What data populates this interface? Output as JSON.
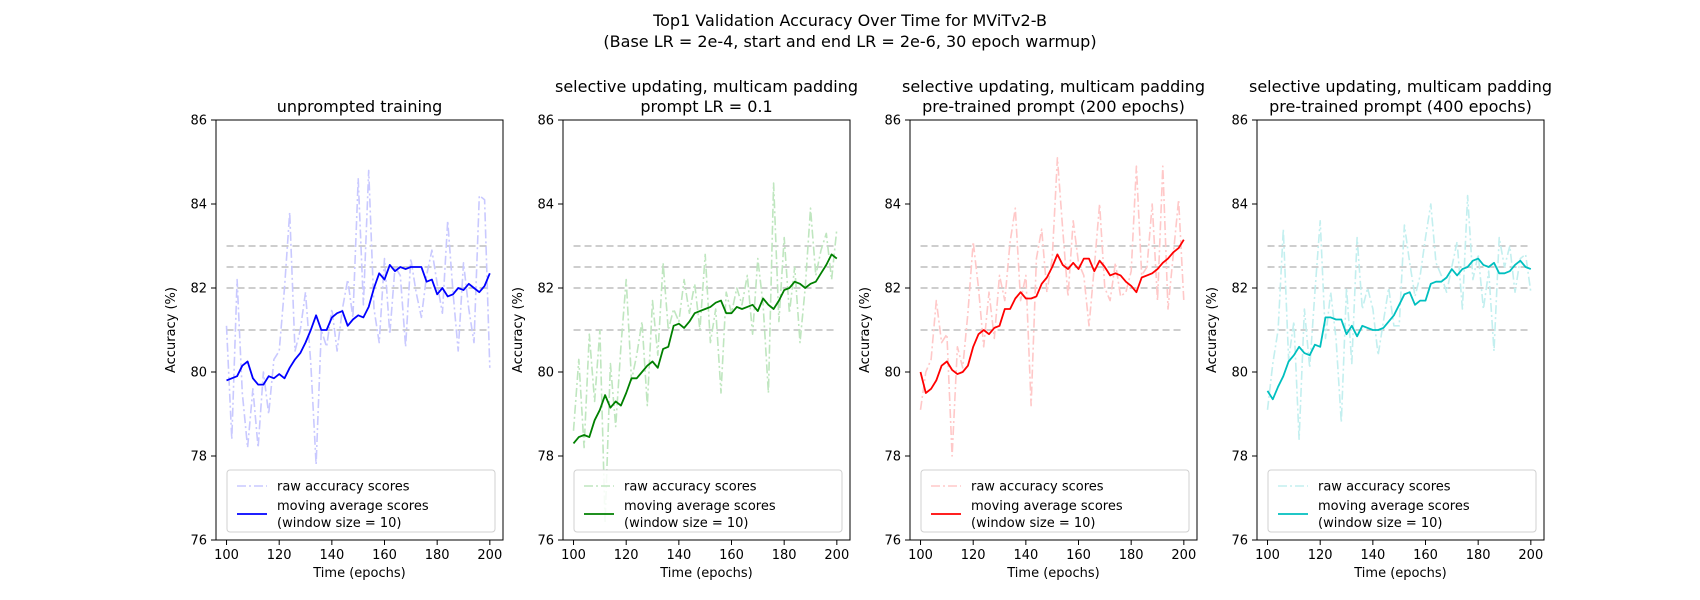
{
  "figure": {
    "suptitle_line1": "Top1 Validation Accuracy Over Time for MViTv2-B",
    "suptitle_line2": "(Base LR = 2e-4, start and end LR = 2e-6, 30 epoch warmup)"
  },
  "chart_data": [
    {
      "type": "line",
      "title": [
        "unprompted training"
      ],
      "xlabel": "Time (epochs)",
      "ylabel": "Accuracy (%)",
      "xlim": [
        96,
        205
      ],
      "ylim": [
        76,
        86
      ],
      "xticks": [
        100,
        120,
        140,
        160,
        180,
        200
      ],
      "yticks": [
        76,
        78,
        80,
        82,
        84,
        86
      ],
      "reference_lines": [
        81.0,
        82.0,
        82.5,
        83.0
      ],
      "colors": {
        "raw": "#c9c9ff",
        "avg": "#0000ff"
      },
      "legend": {
        "position": "lower right",
        "entries": [
          "raw accuracy scores",
          "moving average scores\n(window size = 10)"
        ]
      },
      "series": [
        {
          "name": "raw accuracy scores",
          "style": "dashdot",
          "x": [
            100,
            102,
            104,
            106,
            108,
            110,
            112,
            114,
            116,
            118,
            120,
            122,
            124,
            126,
            128,
            130,
            132,
            134,
            136,
            138,
            140,
            142,
            144,
            146,
            148,
            150,
            152,
            154,
            156,
            158,
            160,
            162,
            164,
            166,
            168,
            170,
            172,
            174,
            176,
            178,
            180,
            182,
            184,
            186,
            188,
            190,
            192,
            194,
            196,
            198,
            200
          ],
          "y": [
            81.1,
            78.4,
            82.2,
            79.5,
            78.2,
            79.6,
            78.2,
            80.0,
            79.0,
            80.3,
            80.5,
            82.0,
            83.8,
            80.5,
            81.0,
            81.9,
            80.2,
            77.8,
            81.0,
            80.6,
            81.5,
            80.5,
            81.5,
            82.2,
            81.3,
            84.6,
            81.6,
            84.8,
            81.5,
            80.7,
            82.7,
            80.9,
            82.5,
            82.3,
            80.6,
            82.7,
            81.9,
            81.3,
            82.3,
            82.9,
            82.1,
            81.4,
            83.6,
            81.9,
            80.5,
            82.6,
            81.5,
            80.7,
            84.2,
            84.1,
            80.1
          ]
        },
        {
          "name": "moving average scores\n(window size = 10)",
          "style": "solid",
          "x": [
            100,
            102,
            104,
            106,
            108,
            110,
            112,
            114,
            116,
            118,
            120,
            122,
            124,
            126,
            128,
            130,
            132,
            134,
            136,
            138,
            140,
            142,
            144,
            146,
            148,
            150,
            152,
            154,
            156,
            158,
            160,
            162,
            164,
            166,
            168,
            170,
            172,
            174,
            176,
            178,
            180,
            182,
            184,
            186,
            188,
            190,
            192,
            194,
            196,
            198,
            200
          ],
          "y": [
            79.8,
            79.85,
            79.9,
            80.15,
            80.25,
            79.85,
            79.7,
            79.7,
            79.9,
            79.85,
            79.95,
            79.85,
            80.1,
            80.3,
            80.45,
            80.7,
            81.0,
            81.35,
            81.0,
            81.0,
            81.3,
            81.4,
            81.45,
            81.1,
            81.25,
            81.35,
            81.3,
            81.55,
            82.0,
            82.35,
            82.2,
            82.55,
            82.4,
            82.5,
            82.45,
            82.5,
            82.5,
            82.5,
            82.15,
            82.2,
            81.85,
            82.0,
            81.8,
            81.85,
            82.0,
            81.95,
            82.1,
            82.0,
            81.9,
            82.05,
            82.35
          ]
        }
      ]
    },
    {
      "type": "line",
      "title": [
        "selective updating, multicam padding",
        "prompt LR = 0.1"
      ],
      "xlabel": "Time (epochs)",
      "ylabel": "Accuracy (%)",
      "xlim": [
        96,
        205
      ],
      "ylim": [
        76,
        86
      ],
      "xticks": [
        100,
        120,
        140,
        160,
        180,
        200
      ],
      "yticks": [
        76,
        78,
        80,
        82,
        84,
        86
      ],
      "reference_lines": [
        81.0,
        82.0,
        82.5,
        83.0
      ],
      "colors": {
        "raw": "#bfe6bf",
        "avg": "#008000"
      },
      "legend": {
        "position": "lower right",
        "entries": [
          "raw accuracy scores",
          "moving average scores\n(window size = 10)"
        ]
      },
      "series": [
        {
          "name": "raw accuracy scores",
          "style": "dashdot",
          "x": [
            100,
            102,
            104,
            106,
            108,
            110,
            112,
            114,
            116,
            118,
            120,
            122,
            124,
            126,
            128,
            130,
            132,
            134,
            136,
            138,
            140,
            142,
            144,
            146,
            148,
            150,
            152,
            154,
            156,
            158,
            160,
            162,
            164,
            166,
            168,
            170,
            172,
            174,
            176,
            178,
            180,
            182,
            184,
            186,
            188,
            190,
            192,
            194,
            196,
            198,
            200
          ],
          "y": [
            78.6,
            80.3,
            78.2,
            80.9,
            79.3,
            81.0,
            76.4,
            80.2,
            78.7,
            80.6,
            82.2,
            79.8,
            80.4,
            81.2,
            79.2,
            81.7,
            80.4,
            82.6,
            81.0,
            81.5,
            81.2,
            82.2,
            81.4,
            82.1,
            81.0,
            82.8,
            80.7,
            81.5,
            79.5,
            81.9,
            81.4,
            82.0,
            81.6,
            82.3,
            80.9,
            82.7,
            81.6,
            79.5,
            84.5,
            81.2,
            83.2,
            81.4,
            82.5,
            80.7,
            82.0,
            83.9,
            82.3,
            82.9,
            83.3,
            82.2,
            83.4
          ]
        },
        {
          "name": "moving average scores\n(window size = 10)",
          "style": "solid",
          "x": [
            100,
            102,
            104,
            106,
            108,
            110,
            112,
            114,
            116,
            118,
            120,
            122,
            124,
            126,
            128,
            130,
            132,
            134,
            136,
            138,
            140,
            142,
            144,
            146,
            148,
            150,
            152,
            154,
            156,
            158,
            160,
            162,
            164,
            166,
            168,
            170,
            172,
            174,
            176,
            178,
            180,
            182,
            184,
            186,
            188,
            190,
            192,
            194,
            196,
            198,
            200
          ],
          "y": [
            78.3,
            78.45,
            78.5,
            78.45,
            78.85,
            79.1,
            79.45,
            79.15,
            79.3,
            79.2,
            79.5,
            79.85,
            79.85,
            80.0,
            80.15,
            80.25,
            80.1,
            80.55,
            80.6,
            81.1,
            81.15,
            81.05,
            81.2,
            81.4,
            81.45,
            81.5,
            81.55,
            81.65,
            81.7,
            81.4,
            81.4,
            81.55,
            81.5,
            81.55,
            81.6,
            81.45,
            81.75,
            81.6,
            81.5,
            81.7,
            81.95,
            82.0,
            82.15,
            82.1,
            82.0,
            82.1,
            82.15,
            82.35,
            82.55,
            82.8,
            82.7
          ]
        }
      ]
    },
    {
      "type": "line",
      "title": [
        "selective updating, multicam padding",
        "pre-trained prompt (200 epochs)"
      ],
      "xlabel": "Time (epochs)",
      "ylabel": "Accuracy (%)",
      "xlim": [
        96,
        205
      ],
      "ylim": [
        76,
        86
      ],
      "xticks": [
        100,
        120,
        140,
        160,
        180,
        200
      ],
      "yticks": [
        76,
        78,
        80,
        82,
        84,
        86
      ],
      "reference_lines": [
        81.0,
        82.0,
        82.5,
        83.0
      ],
      "colors": {
        "raw": "#ffc8c8",
        "avg": "#ff0000"
      },
      "legend": {
        "position": "lower right",
        "entries": [
          "raw accuracy scores",
          "moving average scores\n(window size = 10)"
        ]
      },
      "series": [
        {
          "name": "raw accuracy scores",
          "style": "dashdot",
          "x": [
            100,
            102,
            104,
            106,
            108,
            110,
            112,
            114,
            116,
            118,
            120,
            122,
            124,
            126,
            128,
            130,
            132,
            134,
            136,
            138,
            140,
            142,
            144,
            146,
            148,
            150,
            152,
            154,
            156,
            158,
            160,
            162,
            164,
            166,
            168,
            170,
            172,
            174,
            176,
            178,
            180,
            182,
            184,
            186,
            188,
            190,
            192,
            194,
            196,
            198,
            200
          ],
          "y": [
            79.1,
            80.0,
            80.3,
            81.7,
            80.7,
            80.9,
            78.0,
            80.6,
            80.1,
            81.4,
            83.1,
            82.0,
            80.6,
            81.9,
            80.8,
            82.3,
            81.7,
            83.1,
            83.9,
            81.7,
            82.3,
            79.2,
            82.7,
            83.4,
            81.9,
            82.7,
            85.1,
            83.4,
            81.8,
            83.6,
            82.6,
            82.3,
            81.1,
            82.5,
            84.0,
            82.0,
            81.7,
            82.6,
            81.8,
            81.9,
            82.4,
            84.9,
            82.3,
            82.5,
            84.0,
            81.7,
            84.9,
            81.5,
            82.8,
            84.1,
            81.7
          ]
        },
        {
          "name": "moving average scores\n(window size = 10)",
          "style": "solid",
          "x": [
            100,
            102,
            104,
            106,
            108,
            110,
            112,
            114,
            116,
            118,
            120,
            122,
            124,
            126,
            128,
            130,
            132,
            134,
            136,
            138,
            140,
            142,
            144,
            146,
            148,
            150,
            152,
            154,
            156,
            158,
            160,
            162,
            164,
            166,
            168,
            170,
            172,
            174,
            176,
            178,
            180,
            182,
            184,
            186,
            188,
            190,
            192,
            194,
            196,
            198,
            200
          ],
          "y": [
            80.0,
            79.5,
            79.6,
            79.8,
            80.15,
            80.25,
            80.05,
            79.95,
            80.0,
            80.15,
            80.6,
            80.9,
            81.0,
            80.9,
            81.05,
            81.1,
            81.5,
            81.5,
            81.75,
            81.9,
            81.75,
            81.75,
            81.8,
            82.1,
            82.25,
            82.5,
            82.8,
            82.55,
            82.45,
            82.6,
            82.45,
            82.7,
            82.7,
            82.4,
            82.65,
            82.5,
            82.3,
            82.35,
            82.3,
            82.15,
            82.05,
            81.9,
            82.25,
            82.3,
            82.35,
            82.45,
            82.6,
            82.7,
            82.85,
            82.95,
            83.15
          ]
        }
      ]
    },
    {
      "type": "line",
      "title": [
        "selective updating, multicam padding",
        "pre-trained prompt (400 epochs)"
      ],
      "xlabel": "Time (epochs)",
      "ylabel": "Accuracy (%)",
      "xlim": [
        96,
        205
      ],
      "ylim": [
        76,
        86
      ],
      "xticks": [
        100,
        120,
        140,
        160,
        180,
        200
      ],
      "yticks": [
        76,
        78,
        80,
        82,
        84,
        86
      ],
      "reference_lines": [
        81.0,
        82.0,
        82.5,
        83.0
      ],
      "colors": {
        "raw": "#c3efef",
        "avg": "#00bfbf"
      },
      "legend": {
        "position": "lower right",
        "entries": [
          "raw accuracy scores",
          "moving average scores\n(window size = 10)"
        ]
      },
      "series": [
        {
          "name": "raw accuracy scores",
          "style": "dashdot",
          "x": [
            100,
            102,
            104,
            106,
            108,
            110,
            112,
            114,
            116,
            118,
            120,
            122,
            124,
            126,
            128,
            130,
            132,
            134,
            136,
            138,
            140,
            142,
            144,
            146,
            148,
            150,
            152,
            154,
            156,
            158,
            160,
            162,
            164,
            166,
            168,
            170,
            172,
            174,
            176,
            178,
            180,
            182,
            184,
            186,
            188,
            190,
            192,
            194,
            196,
            198,
            200
          ],
          "y": [
            79.1,
            80.2,
            81.0,
            83.4,
            80.3,
            81.2,
            78.4,
            81.5,
            80.1,
            81.9,
            83.6,
            80.8,
            81.9,
            80.8,
            78.8,
            82.0,
            80.2,
            83.2,
            81.5,
            82.0,
            81.5,
            80.4,
            81.2,
            82.0,
            81.1,
            81.1,
            83.5,
            82.6,
            81.8,
            82.3,
            83.2,
            84.0,
            82.6,
            82.3,
            81.9,
            82.5,
            83.1,
            81.5,
            84.2,
            82.2,
            82.8,
            81.5,
            82.4,
            80.5,
            83.2,
            82.5,
            83.0,
            81.9,
            82.7,
            82.8,
            81.9
          ]
        },
        {
          "name": "moving average scores\n(window size = 10)",
          "style": "solid",
          "x": [
            100,
            102,
            104,
            106,
            108,
            110,
            112,
            114,
            116,
            118,
            120,
            122,
            124,
            126,
            128,
            130,
            132,
            134,
            136,
            138,
            140,
            142,
            144,
            146,
            148,
            150,
            152,
            154,
            156,
            158,
            160,
            162,
            164,
            166,
            168,
            170,
            172,
            174,
            176,
            178,
            180,
            182,
            184,
            186,
            188,
            190,
            192,
            194,
            196,
            198,
            200
          ],
          "y": [
            79.55,
            79.35,
            79.65,
            79.9,
            80.25,
            80.4,
            80.6,
            80.45,
            80.4,
            80.65,
            80.6,
            81.3,
            81.3,
            81.25,
            81.25,
            80.9,
            81.1,
            80.85,
            81.1,
            81.05,
            81.0,
            81.0,
            81.05,
            81.2,
            81.35,
            81.6,
            81.85,
            81.9,
            81.6,
            81.7,
            81.7,
            82.1,
            82.15,
            82.15,
            82.25,
            82.45,
            82.3,
            82.45,
            82.5,
            82.65,
            82.7,
            82.55,
            82.5,
            82.6,
            82.35,
            82.35,
            82.4,
            82.55,
            82.65,
            82.5,
            82.45
          ]
        }
      ]
    }
  ]
}
